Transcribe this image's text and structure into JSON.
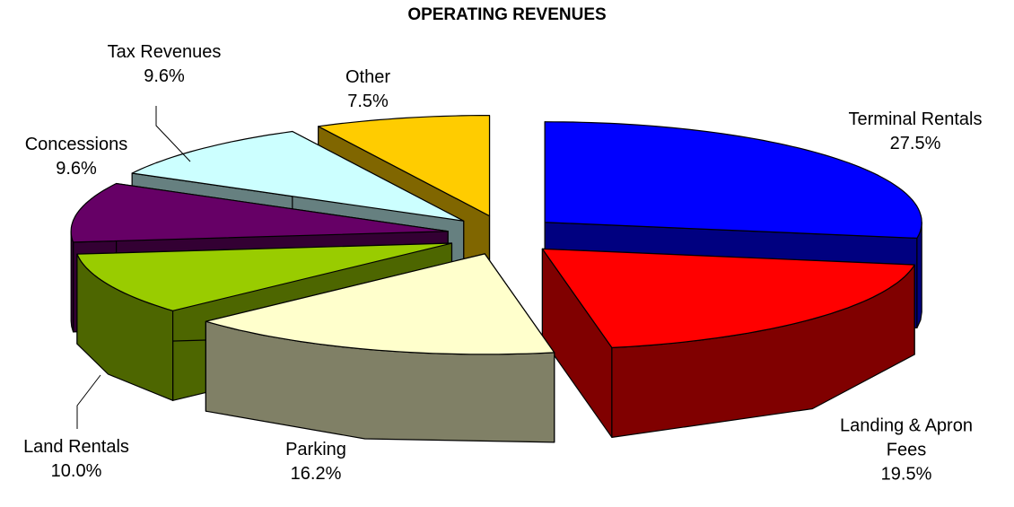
{
  "chart_data": {
    "type": "pie",
    "title": "OPERATING REVENUES",
    "categories": [
      "Terminal Rentals",
      "Landing & Apron Fees",
      "Parking",
      "Land Rentals",
      "Concessions",
      "Tax Revenues",
      "Other"
    ],
    "values": [
      27.5,
      19.5,
      16.2,
      10.0,
      9.6,
      9.6,
      7.5
    ],
    "value_labels": [
      "27.5%",
      "19.5%",
      "16.2%",
      "10.0%",
      "9.6%",
      "9.6%",
      "7.5%"
    ],
    "colors": [
      "#0000FF",
      "#FF0000",
      "#FFFFCC",
      "#99CC00",
      "#660066",
      "#CCFFFF",
      "#FFCC00"
    ]
  }
}
